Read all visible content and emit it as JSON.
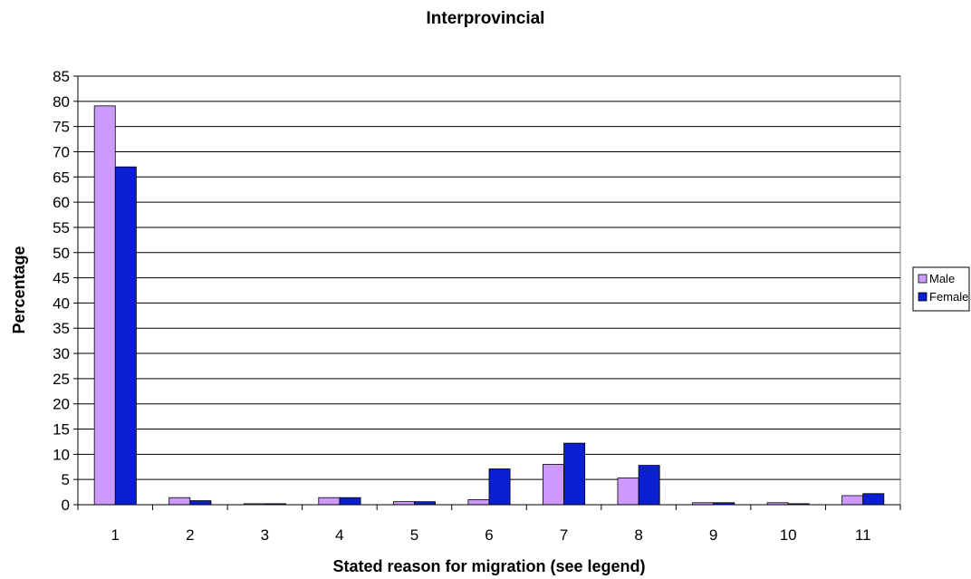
{
  "chart_data": {
    "type": "bar",
    "title": "Interprovincial",
    "xlabel": "Stated reason for migration (see legend)",
    "ylabel": "Percentage",
    "categories": [
      "1",
      "2",
      "3",
      "4",
      "5",
      "6",
      "7",
      "8",
      "9",
      "10",
      "11"
    ],
    "series": [
      {
        "name": "Male",
        "color": "#cc99ff",
        "values": [
          79.1,
          1.4,
          0.2,
          1.4,
          0.6,
          1.0,
          8.0,
          5.3,
          0.4,
          0.4,
          1.8
        ]
      },
      {
        "name": "Female",
        "color": "#0a1ed2",
        "values": [
          67.0,
          0.8,
          0.2,
          1.4,
          0.6,
          7.1,
          12.2,
          7.8,
          0.4,
          0.2,
          2.2
        ]
      }
    ],
    "ylim": [
      0,
      85
    ],
    "yticks": [
      0,
      5,
      10,
      15,
      20,
      25,
      30,
      35,
      40,
      45,
      50,
      55,
      60,
      65,
      70,
      75,
      80,
      85
    ],
    "grid": true,
    "legend_position": "right"
  }
}
